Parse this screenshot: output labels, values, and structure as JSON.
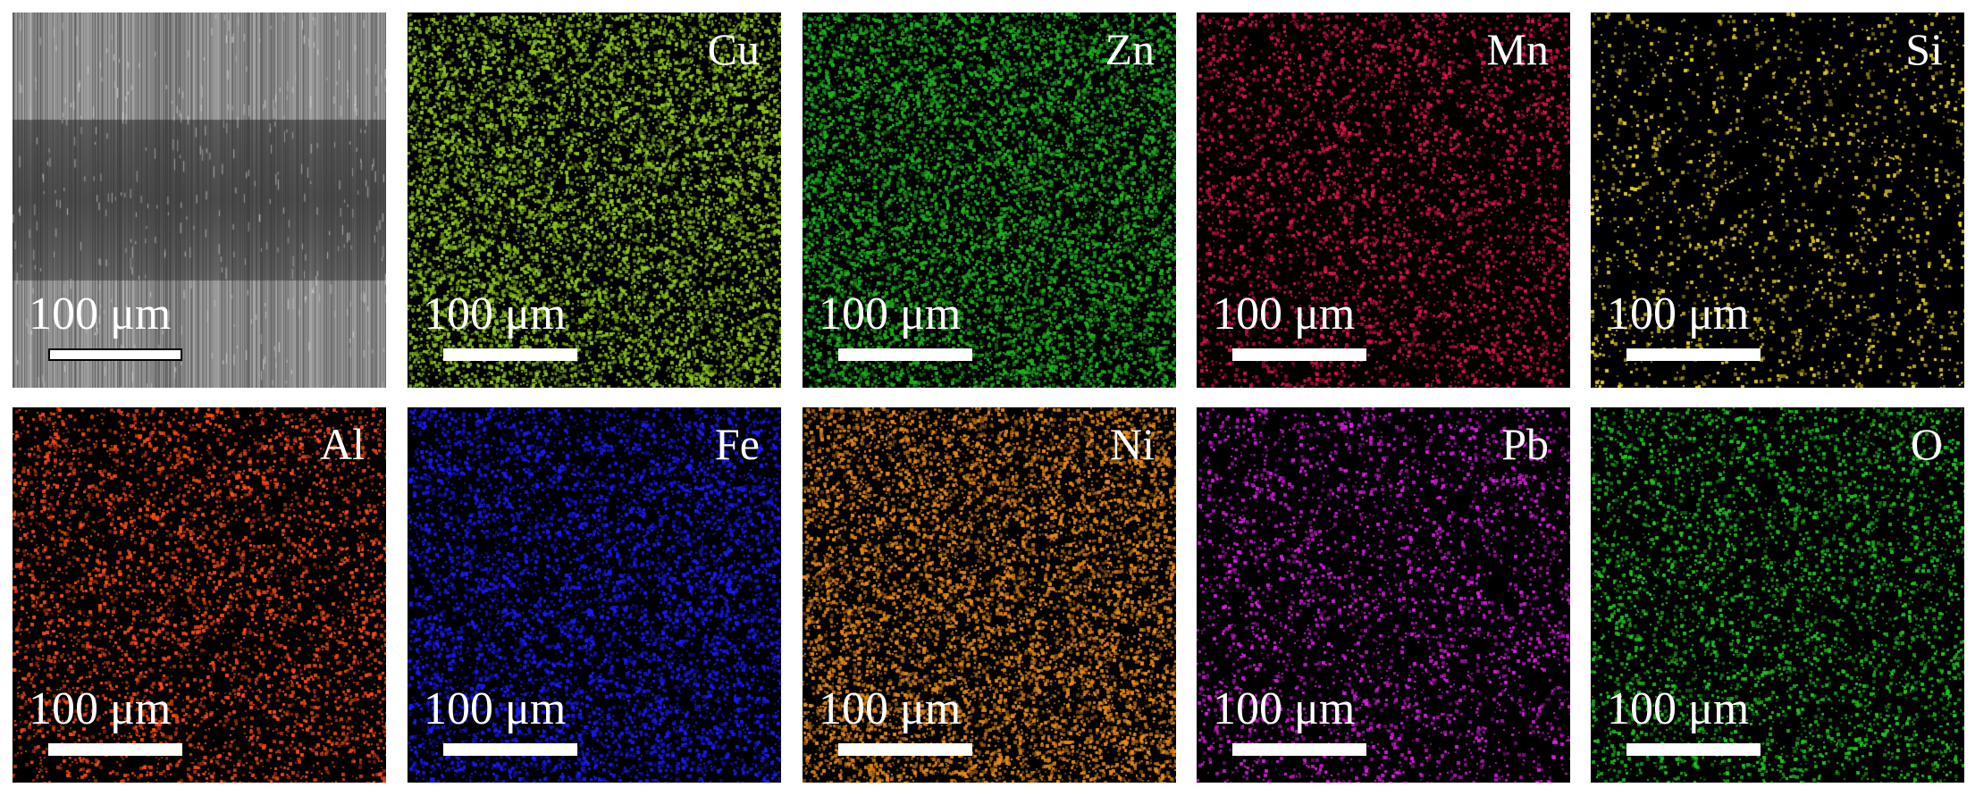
{
  "scale_label": "100 μm",
  "panels": [
    {
      "label": "",
      "color": "#9a9a9a",
      "type": "sem"
    },
    {
      "label": "Cu",
      "color": "#8cc61c",
      "type": "map"
    },
    {
      "label": "Zn",
      "color": "#1fb21f",
      "type": "map"
    },
    {
      "label": "Mn",
      "color": "#e0144a",
      "type": "map"
    },
    {
      "label": "Si",
      "color": "#e6d21e",
      "type": "map"
    },
    {
      "label": "Al",
      "color": "#ff4b10",
      "type": "map"
    },
    {
      "label": "Fe",
      "color": "#1a1aff",
      "type": "map"
    },
    {
      "label": "Ni",
      "color": "#e88a14",
      "type": "map"
    },
    {
      "label": "Pb",
      "color": "#e01ee6",
      "type": "map"
    },
    {
      "label": "O",
      "color": "#1ec81e",
      "type": "map"
    }
  ]
}
